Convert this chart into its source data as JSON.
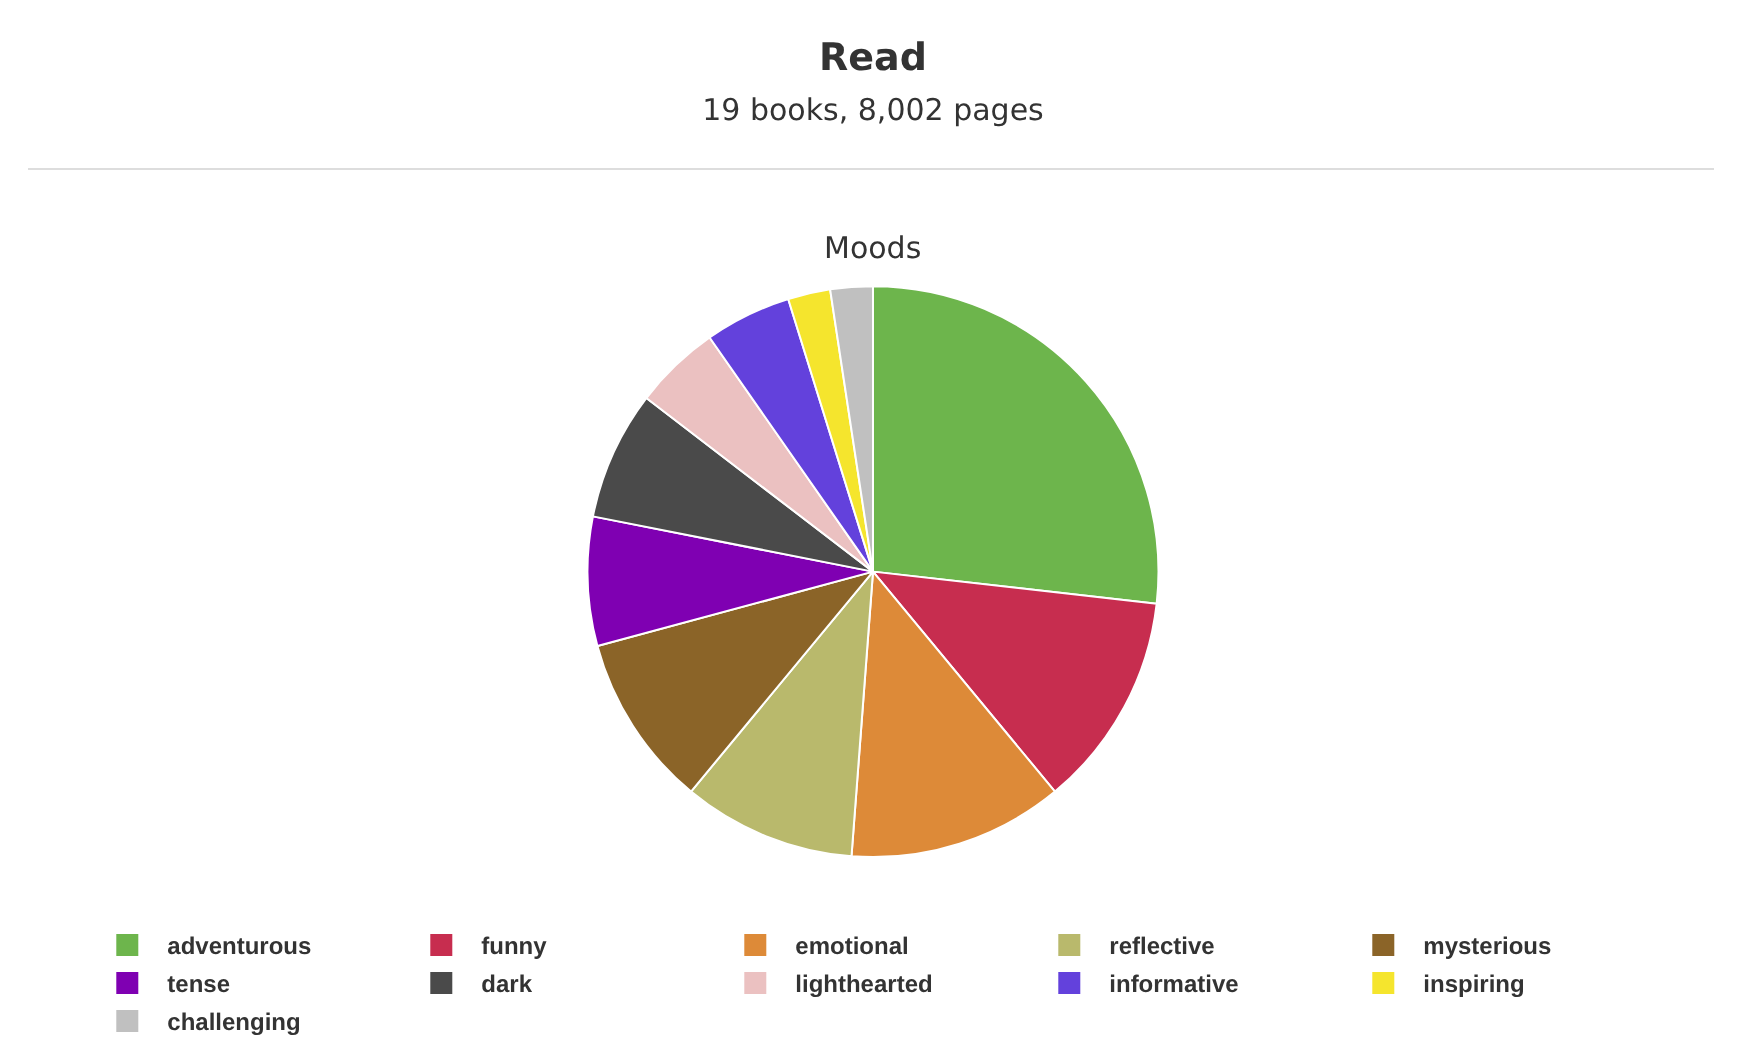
{
  "chart_data": {
    "type": "pie",
    "title": "Read",
    "subtitle": "19 books, 8,002 pages",
    "annotations": [
      "Moods"
    ],
    "categories": [
      "adventurous",
      "funny",
      "emotional",
      "reflective",
      "mysterious",
      "tense",
      "dark",
      "lighthearted",
      "informative",
      "inspiring",
      "challenging"
    ],
    "values": [
      26.8,
      12.2,
      12.2,
      9.8,
      9.8,
      7.3,
      7.3,
      4.9,
      4.9,
      2.4,
      2.4
    ],
    "colors": [
      "#6db54c",
      "#c72d4f",
      "#dd8a38",
      "#b9b96c",
      "#8b6428",
      "#7f00b2",
      "#4a4a4a",
      "#ebc1c1",
      "#6341dc",
      "#f5e52d",
      "#c0c0c0"
    ],
    "legend": "bottom"
  }
}
